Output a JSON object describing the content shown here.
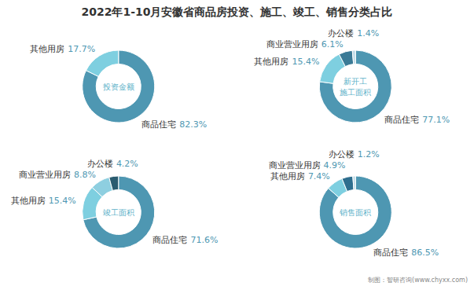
{
  "title": "2022年1-10月安徽省商品房投资、施工、竣工、销售分类占比",
  "annotations": [
    "制图：智研咨询(www.chyxx.com)"
  ],
  "chart_data": [
    {
      "type": "pie",
      "title": "投资金额",
      "categories": [
        "商品住宅",
        "其他用房"
      ],
      "values": [
        82.3,
        17.7
      ],
      "value_labels": [
        "82.3%",
        "17.7%"
      ],
      "colors": [
        "#4e97b2",
        "#7ecfe0"
      ],
      "data_labels": true
    },
    {
      "type": "pie",
      "title": "新开工\n施工面积",
      "categories": [
        "商品住宅",
        "其他用房",
        "商业营业用房",
        "办公楼"
      ],
      "values": [
        77.1,
        15.4,
        6.1,
        1.4
      ],
      "value_labels": [
        "77.1%",
        "15.4%",
        "6.1%",
        "1.4%"
      ],
      "colors": [
        "#4e97b2",
        "#7ecfe0",
        "#3a7a96",
        "#c0dce8"
      ],
      "data_labels": true
    },
    {
      "type": "pie",
      "title": "竣工面积",
      "categories": [
        "商品住宅",
        "其他用房",
        "商业营业用房",
        "办公楼"
      ],
      "values": [
        71.6,
        15.4,
        8.8,
        4.2
      ],
      "value_labels": [
        "71.6%",
        "15.4%",
        "8.8%",
        "4.2%"
      ],
      "colors": [
        "#4e97b2",
        "#7ecfe0",
        "#8ecfe0",
        "#2a5c70"
      ],
      "data_labels": true
    },
    {
      "type": "pie",
      "title": "销售面积",
      "categories": [
        "商品住宅",
        "其他用房",
        "商业营业用房",
        "办公楼"
      ],
      "values": [
        86.5,
        7.4,
        4.9,
        1.2
      ],
      "value_labels": [
        "86.5%",
        "7.4%",
        "4.9%",
        "1.2%"
      ],
      "colors": [
        "#4e97b2",
        "#7ecfe0",
        "#2e6e8e",
        "#c0dce8"
      ],
      "data_labels": true
    }
  ]
}
